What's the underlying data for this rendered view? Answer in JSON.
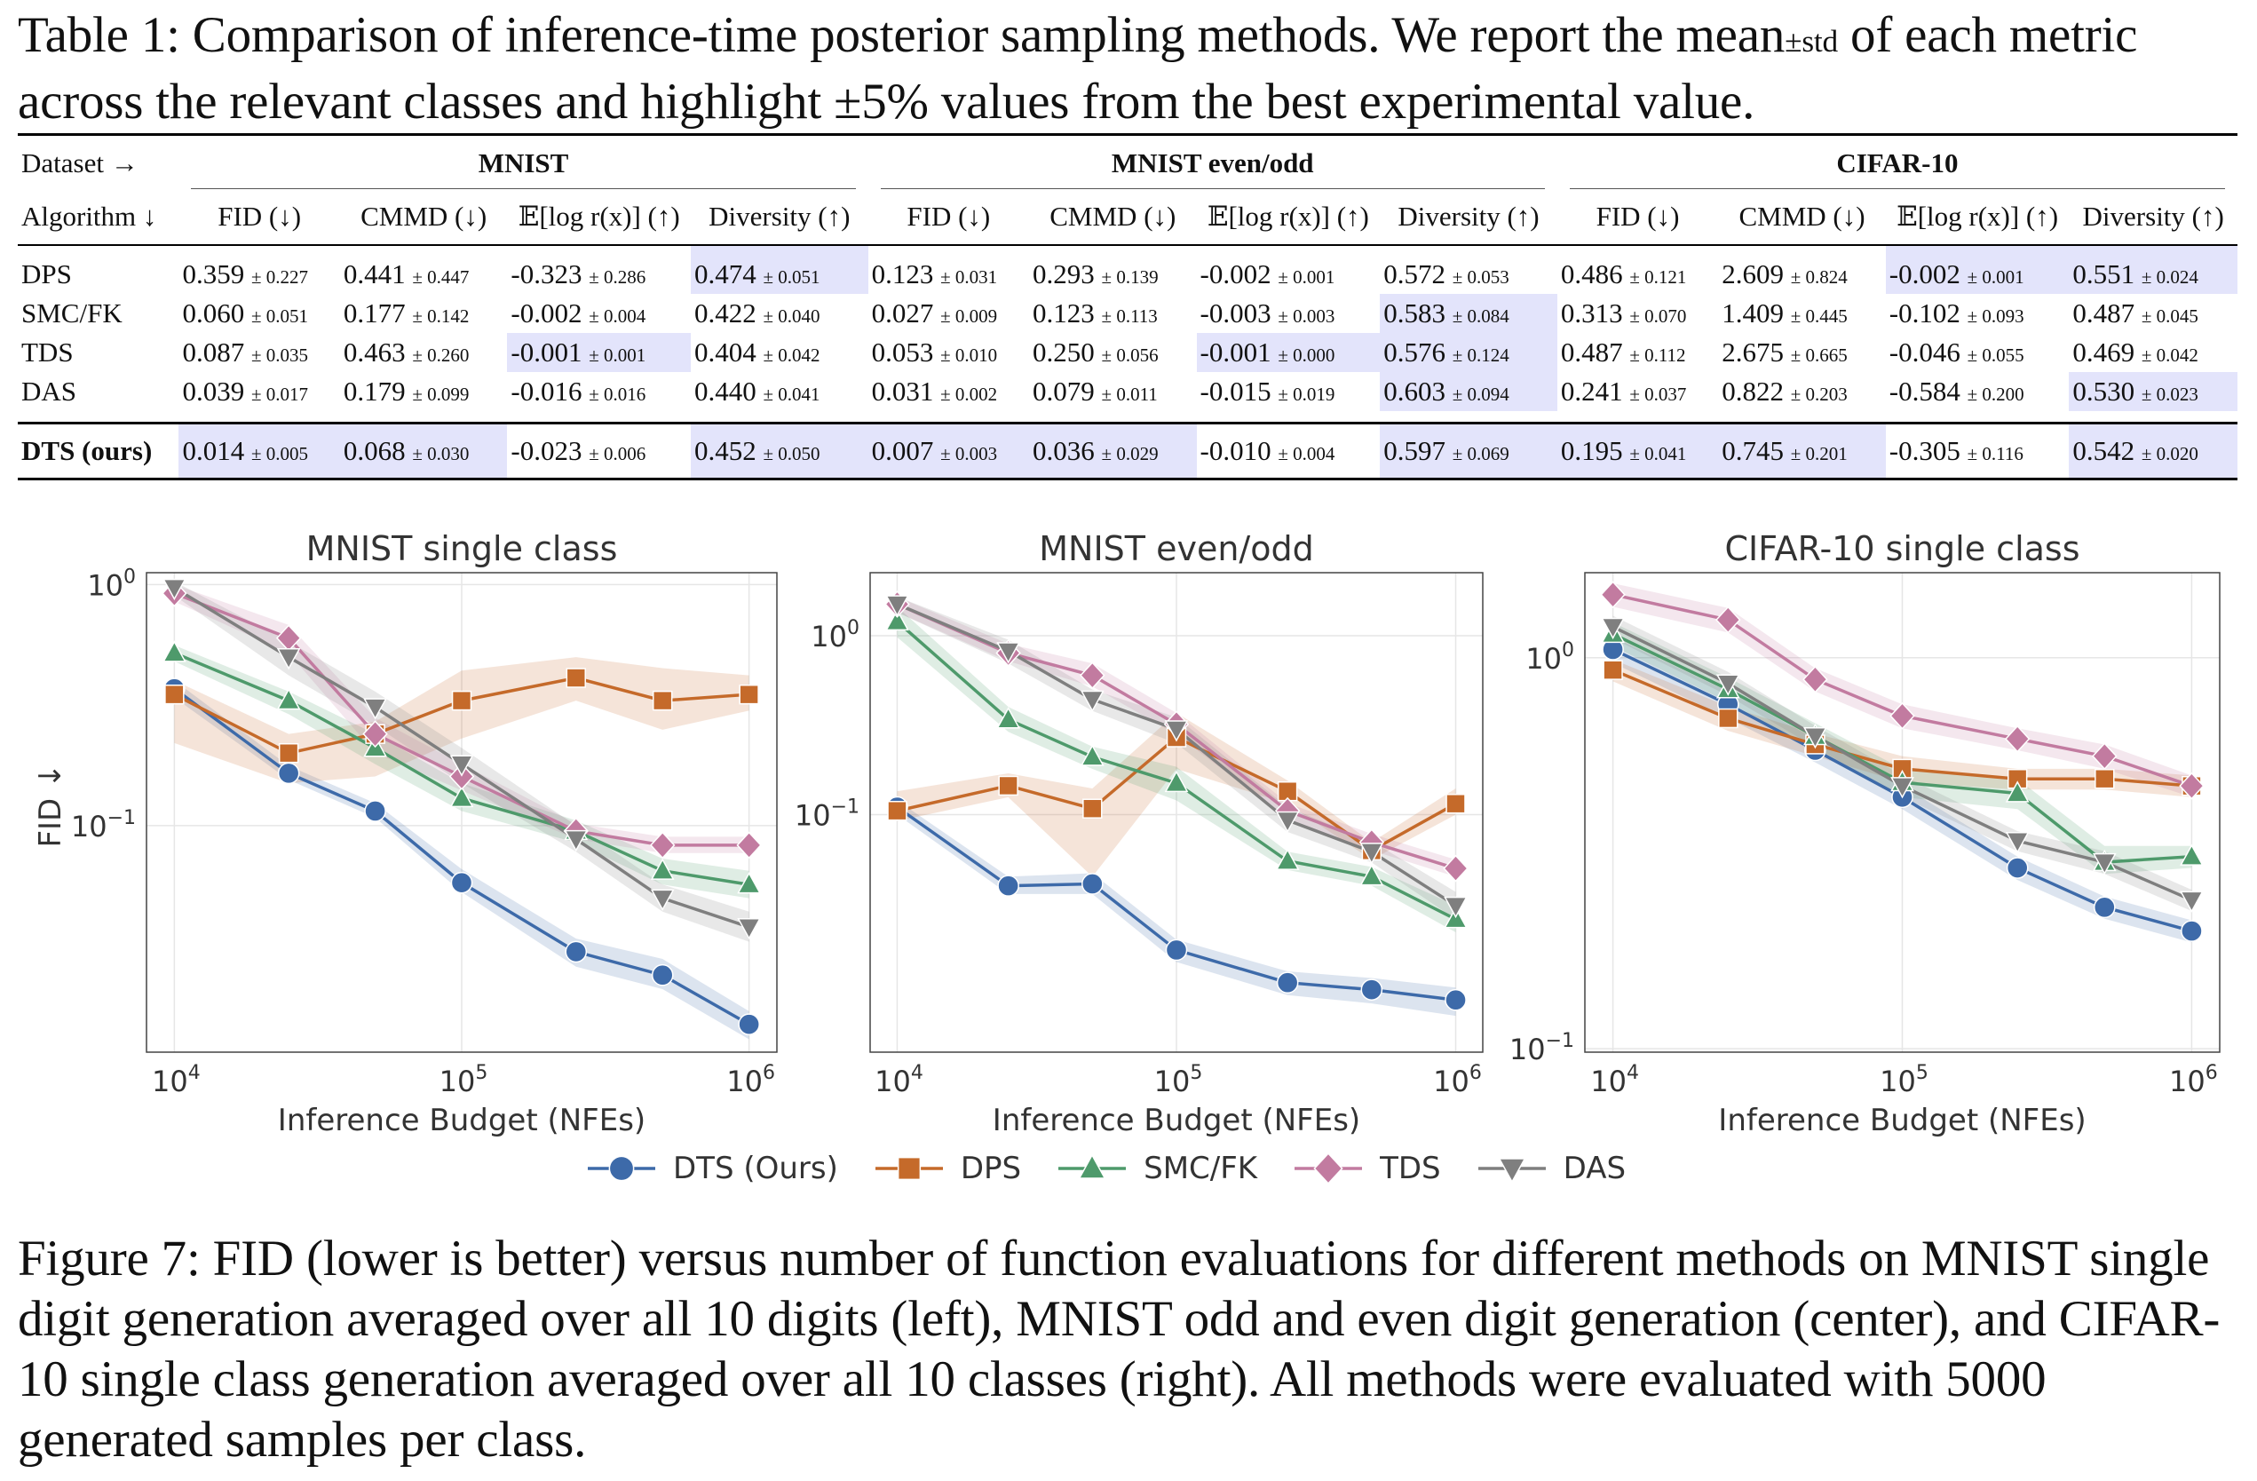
{
  "table_caption": {
    "pre": "Table 1: Comparison of inference-time posterior sampling methods. We report the mean",
    "pm": "±std",
    "post": " of each metric across the relevant classes and highlight ±5% values from the best experimental value."
  },
  "table": {
    "dataset_label": "Dataset →",
    "algorithm_label": "Algorithm ↓",
    "datasets": [
      "MNIST",
      "MNIST even/odd",
      "CIFAR-10"
    ],
    "metrics": [
      "FID (↓)",
      "CMMD (↓)",
      "𝔼[log r(x)] (↑)",
      "Diversity (↑)"
    ],
    "rows": [
      {
        "name": "DPS",
        "bold": false,
        "cells": [
          {
            "v": "0.359",
            "s": "± 0.227",
            "h": false
          },
          {
            "v": "0.441",
            "s": "± 0.447",
            "h": false
          },
          {
            "v": "-0.323",
            "s": "± 0.286",
            "h": false
          },
          {
            "v": "0.474",
            "s": "± 0.051",
            "h": true
          },
          {
            "v": "0.123",
            "s": "± 0.031",
            "h": false
          },
          {
            "v": "0.293",
            "s": "± 0.139",
            "h": false
          },
          {
            "v": "-0.002",
            "s": "± 0.001",
            "h": false
          },
          {
            "v": "0.572",
            "s": "± 0.053",
            "h": false
          },
          {
            "v": "0.486",
            "s": "± 0.121",
            "h": false
          },
          {
            "v": "2.609",
            "s": "± 0.824",
            "h": false
          },
          {
            "v": "-0.002",
            "s": "± 0.001",
            "h": true
          },
          {
            "v": "0.551",
            "s": "± 0.024",
            "h": true
          }
        ]
      },
      {
        "name": "SMC/FK",
        "bold": false,
        "cells": [
          {
            "v": "0.060",
            "s": "± 0.051",
            "h": false
          },
          {
            "v": "0.177",
            "s": "± 0.142",
            "h": false
          },
          {
            "v": "-0.002",
            "s": "± 0.004",
            "h": false
          },
          {
            "v": "0.422",
            "s": "± 0.040",
            "h": false
          },
          {
            "v": "0.027",
            "s": "± 0.009",
            "h": false
          },
          {
            "v": "0.123",
            "s": "± 0.113",
            "h": false
          },
          {
            "v": "-0.003",
            "s": "± 0.003",
            "h": false
          },
          {
            "v": "0.583",
            "s": "± 0.084",
            "h": true
          },
          {
            "v": "0.313",
            "s": "± 0.070",
            "h": false
          },
          {
            "v": "1.409",
            "s": "± 0.445",
            "h": false
          },
          {
            "v": "-0.102",
            "s": "± 0.093",
            "h": false
          },
          {
            "v": "0.487",
            "s": "± 0.045",
            "h": false
          }
        ]
      },
      {
        "name": "TDS",
        "bold": false,
        "cells": [
          {
            "v": "0.087",
            "s": "± 0.035",
            "h": false
          },
          {
            "v": "0.463",
            "s": "± 0.260",
            "h": false
          },
          {
            "v": "-0.001",
            "s": "± 0.001",
            "h": true
          },
          {
            "v": "0.404",
            "s": "± 0.042",
            "h": false
          },
          {
            "v": "0.053",
            "s": "± 0.010",
            "h": false
          },
          {
            "v": "0.250",
            "s": "± 0.056",
            "h": false
          },
          {
            "v": "-0.001",
            "s": "± 0.000",
            "h": true
          },
          {
            "v": "0.576",
            "s": "± 0.124",
            "h": true
          },
          {
            "v": "0.487",
            "s": "± 0.112",
            "h": false
          },
          {
            "v": "2.675",
            "s": "± 0.665",
            "h": false
          },
          {
            "v": "-0.046",
            "s": "± 0.055",
            "h": false
          },
          {
            "v": "0.469",
            "s": "± 0.042",
            "h": false
          }
        ]
      },
      {
        "name": "DAS",
        "bold": false,
        "cells": [
          {
            "v": "0.039",
            "s": "± 0.017",
            "h": false
          },
          {
            "v": "0.179",
            "s": "± 0.099",
            "h": false
          },
          {
            "v": "-0.016",
            "s": "± 0.016",
            "h": false
          },
          {
            "v": "0.440",
            "s": "± 0.041",
            "h": false
          },
          {
            "v": "0.031",
            "s": "± 0.002",
            "h": false
          },
          {
            "v": "0.079",
            "s": "± 0.011",
            "h": false
          },
          {
            "v": "-0.015",
            "s": "± 0.019",
            "h": false
          },
          {
            "v": "0.603",
            "s": "± 0.094",
            "h": true
          },
          {
            "v": "0.241",
            "s": "± 0.037",
            "h": false
          },
          {
            "v": "0.822",
            "s": "± 0.203",
            "h": false
          },
          {
            "v": "-0.584",
            "s": "± 0.200",
            "h": false
          },
          {
            "v": "0.530",
            "s": "± 0.023",
            "h": true
          }
        ]
      },
      {
        "name": "DTS (ours)",
        "bold": true,
        "cells": [
          {
            "v": "0.014",
            "s": "± 0.005",
            "h": true
          },
          {
            "v": "0.068",
            "s": "± 0.030",
            "h": true
          },
          {
            "v": "-0.023",
            "s": "± 0.006",
            "h": false
          },
          {
            "v": "0.452",
            "s": "± 0.050",
            "h": true
          },
          {
            "v": "0.007",
            "s": "± 0.003",
            "h": true
          },
          {
            "v": "0.036",
            "s": "± 0.029",
            "h": true
          },
          {
            "v": "-0.010",
            "s": "± 0.004",
            "h": false
          },
          {
            "v": "0.597",
            "s": "± 0.069",
            "h": true
          },
          {
            "v": "0.195",
            "s": "± 0.041",
            "h": true
          },
          {
            "v": "0.745",
            "s": "± 0.201",
            "h": true
          },
          {
            "v": "-0.305",
            "s": "± 0.116",
            "h": false
          },
          {
            "v": "0.542",
            "s": "± 0.020",
            "h": true
          }
        ]
      }
    ]
  },
  "chart_data": [
    {
      "type": "line",
      "title": "MNIST single class",
      "xlabel": "Inference Budget (NFEs)",
      "ylabel": "FID ↓",
      "xscale": "log",
      "yscale": "log",
      "xlim": [
        8000,
        1250000
      ],
      "ylim": [
        0.0115,
        1.12
      ],
      "x": [
        10000,
        25000,
        50000,
        100000,
        250000,
        500000,
        1000000
      ],
      "xticks": [
        {
          "value": 10000,
          "label": "10^4"
        },
        {
          "value": 100000,
          "label": "10^5"
        },
        {
          "value": 1000000,
          "label": "10^6"
        }
      ],
      "yticks": [
        {
          "value": 1,
          "label": "10^0"
        },
        {
          "value": 0.1,
          "label": "10^-1"
        }
      ],
      "series": [
        {
          "name": "DTS (Ours)",
          "color": "#3d6aa9",
          "marker": "circle",
          "values": [
            0.37,
            0.165,
            0.115,
            0.058,
            0.03,
            0.024,
            0.015
          ],
          "lower": [
            0.34,
            0.155,
            0.108,
            0.053,
            0.026,
            0.021,
            0.013
          ],
          "upper": [
            0.4,
            0.177,
            0.124,
            0.066,
            0.034,
            0.028,
            0.017
          ]
        },
        {
          "name": "DPS",
          "color": "#c56a2a",
          "marker": "square",
          "values": [
            0.35,
            0.2,
            0.24,
            0.33,
            0.41,
            0.33,
            0.35
          ],
          "lower": [
            0.22,
            0.15,
            0.16,
            0.23,
            0.33,
            0.25,
            0.3
          ],
          "upper": [
            0.4,
            0.24,
            0.27,
            0.44,
            0.5,
            0.45,
            0.42
          ]
        },
        {
          "name": "SMC/FK",
          "color": "#4e9a6b",
          "marker": "triangle-up",
          "values": [
            0.52,
            0.33,
            0.21,
            0.13,
            0.095,
            0.065,
            0.057
          ],
          "lower": [
            0.48,
            0.29,
            0.18,
            0.115,
            0.085,
            0.057,
            0.05
          ],
          "upper": [
            0.56,
            0.36,
            0.24,
            0.15,
            0.105,
            0.073,
            0.065
          ]
        },
        {
          "name": "TDS",
          "color": "#c27ba0",
          "marker": "diamond",
          "values": [
            0.92,
            0.6,
            0.24,
            0.16,
            0.095,
            0.083,
            0.083
          ],
          "lower": [
            0.85,
            0.52,
            0.2,
            0.14,
            0.088,
            0.077,
            0.077
          ],
          "upper": [
            1.0,
            0.68,
            0.28,
            0.18,
            0.102,
            0.09,
            0.09
          ]
        },
        {
          "name": "DAS",
          "color": "#7f7f7f",
          "marker": "triangle-down",
          "values": [
            0.97,
            0.5,
            0.31,
            0.18,
            0.088,
            0.05,
            0.038
          ],
          "lower": [
            0.9,
            0.42,
            0.26,
            0.15,
            0.078,
            0.044,
            0.033
          ],
          "upper": [
            1.03,
            0.58,
            0.36,
            0.21,
            0.1,
            0.057,
            0.044
          ]
        }
      ]
    },
    {
      "type": "line",
      "title": "MNIST even/odd",
      "xlabel": "Inference Budget (NFEs)",
      "ylabel": "",
      "xscale": "log",
      "yscale": "log",
      "xlim": [
        8000,
        1250000
      ],
      "ylim": [
        0.0047,
        2.25
      ],
      "x": [
        10000,
        25000,
        50000,
        100000,
        250000,
        500000,
        1000000
      ],
      "xticks": [
        {
          "value": 10000,
          "label": "10^4"
        },
        {
          "value": 100000,
          "label": "10^5"
        },
        {
          "value": 1000000,
          "label": "10^6"
        }
      ],
      "yticks": [
        {
          "value": 1,
          "label": "10^0"
        },
        {
          "value": 0.1,
          "label": "10^-1"
        }
      ],
      "series": [
        {
          "name": "DTS (Ours)",
          "color": "#3d6aa9",
          "marker": "circle",
          "values": [
            0.11,
            0.04,
            0.041,
            0.0175,
            0.0115,
            0.0105,
            0.0092
          ],
          "lower": [
            0.1,
            0.036,
            0.036,
            0.015,
            0.0098,
            0.0088,
            0.0075
          ],
          "upper": [
            0.12,
            0.045,
            0.047,
            0.02,
            0.0133,
            0.0122,
            0.0108
          ]
        },
        {
          "name": "DPS",
          "color": "#c56a2a",
          "marker": "square",
          "values": [
            0.105,
            0.145,
            0.108,
            0.27,
            0.135,
            0.063,
            0.115
          ],
          "lower": [
            0.092,
            0.125,
            0.045,
            0.18,
            0.115,
            0.056,
            0.1
          ],
          "upper": [
            0.135,
            0.17,
            0.14,
            0.37,
            0.155,
            0.07,
            0.14
          ]
        },
        {
          "name": "SMC/FK",
          "color": "#4e9a6b",
          "marker": "triangle-up",
          "values": [
            1.2,
            0.34,
            0.21,
            0.15,
            0.055,
            0.045,
            0.026
          ],
          "lower": [
            0.98,
            0.29,
            0.18,
            0.12,
            0.049,
            0.04,
            0.022
          ],
          "upper": [
            1.45,
            0.4,
            0.24,
            0.185,
            0.062,
            0.051,
            0.031
          ]
        },
        {
          "name": "TDS",
          "color": "#c27ba0",
          "marker": "diamond",
          "values": [
            1.5,
            0.8,
            0.6,
            0.32,
            0.105,
            0.07,
            0.05
          ],
          "lower": [
            1.35,
            0.72,
            0.52,
            0.28,
            0.095,
            0.063,
            0.045
          ],
          "upper": [
            1.65,
            0.9,
            0.7,
            0.37,
            0.116,
            0.078,
            0.056
          ]
        },
        {
          "name": "DAS",
          "color": "#7f7f7f",
          "marker": "triangle-down",
          "values": [
            1.5,
            0.82,
            0.44,
            0.3,
            0.093,
            0.062,
            0.031
          ],
          "lower": [
            1.35,
            0.7,
            0.38,
            0.25,
            0.08,
            0.054,
            0.026
          ],
          "upper": [
            1.65,
            0.95,
            0.5,
            0.35,
            0.11,
            0.071,
            0.037
          ]
        }
      ]
    },
    {
      "type": "line",
      "title": "CIFAR-10 single class",
      "xlabel": "Inference Budget (NFEs)",
      "ylabel": "",
      "xscale": "log",
      "yscale": "log",
      "xlim": [
        8000,
        1250000
      ],
      "ylim": [
        0.098,
        1.65
      ],
      "x": [
        10000,
        25000,
        50000,
        100000,
        250000,
        500000,
        1000000
      ],
      "xticks": [
        {
          "value": 10000,
          "label": "10^4"
        },
        {
          "value": 100000,
          "label": "10^5"
        },
        {
          "value": 1000000,
          "label": "10^6"
        }
      ],
      "yticks": [
        {
          "value": 1,
          "label": "10^0"
        },
        {
          "value": 0.1,
          "label": "10^-1"
        }
      ],
      "series": [
        {
          "name": "DTS (Ours)",
          "color": "#3d6aa9",
          "marker": "circle",
          "values": [
            1.05,
            0.76,
            0.58,
            0.44,
            0.29,
            0.23,
            0.2
          ],
          "lower": [
            0.97,
            0.7,
            0.54,
            0.41,
            0.27,
            0.215,
            0.187
          ],
          "upper": [
            1.13,
            0.82,
            0.62,
            0.47,
            0.31,
            0.245,
            0.213
          ]
        },
        {
          "name": "DPS",
          "color": "#c56a2a",
          "marker": "square",
          "values": [
            0.93,
            0.7,
            0.6,
            0.52,
            0.49,
            0.49,
            0.47
          ],
          "lower": [
            0.87,
            0.65,
            0.56,
            0.48,
            0.46,
            0.46,
            0.44
          ],
          "upper": [
            0.99,
            0.75,
            0.64,
            0.56,
            0.52,
            0.52,
            0.5
          ]
        },
        {
          "name": "SMC/FK",
          "color": "#4e9a6b",
          "marker": "triangle-up",
          "values": [
            1.15,
            0.83,
            0.63,
            0.48,
            0.45,
            0.3,
            0.31
          ],
          "lower": [
            1.07,
            0.77,
            0.58,
            0.44,
            0.41,
            0.28,
            0.29
          ],
          "upper": [
            1.23,
            0.89,
            0.68,
            0.52,
            0.49,
            0.33,
            0.33
          ]
        },
        {
          "name": "TDS",
          "color": "#c27ba0",
          "marker": "diamond",
          "values": [
            1.45,
            1.25,
            0.88,
            0.71,
            0.62,
            0.56,
            0.47
          ],
          "lower": [
            1.35,
            1.16,
            0.82,
            0.66,
            0.58,
            0.52,
            0.44
          ],
          "upper": [
            1.55,
            1.34,
            0.94,
            0.76,
            0.66,
            0.6,
            0.5
          ]
        },
        {
          "name": "DAS",
          "color": "#7f7f7f",
          "marker": "triangle-down",
          "values": [
            1.2,
            0.86,
            0.63,
            0.47,
            0.34,
            0.3,
            0.24
          ],
          "lower": [
            1.12,
            0.8,
            0.59,
            0.44,
            0.32,
            0.28,
            0.225
          ],
          "upper": [
            1.28,
            0.92,
            0.67,
            0.5,
            0.36,
            0.32,
            0.255
          ]
        }
      ]
    }
  ],
  "legend": [
    {
      "name": "DTS (Ours)",
      "color": "#3d6aa9",
      "marker": "circle"
    },
    {
      "name": "DPS",
      "color": "#c56a2a",
      "marker": "square"
    },
    {
      "name": "SMC/FK",
      "color": "#4e9a6b",
      "marker": "triangle-up"
    },
    {
      "name": "TDS",
      "color": "#c27ba0",
      "marker": "diamond"
    },
    {
      "name": "DAS",
      "color": "#7f7f7f",
      "marker": "triangle-down"
    }
  ],
  "figure_caption": "Figure 7: FID (lower is better) versus number of function evaluations for different methods on MNIST single digit generation averaged over all 10 digits (left), MNIST odd and even digit generation (center), and CIFAR-10 single class generation averaged over all 10 classes (right). All methods were evaluated with 5000 generated samples per class."
}
